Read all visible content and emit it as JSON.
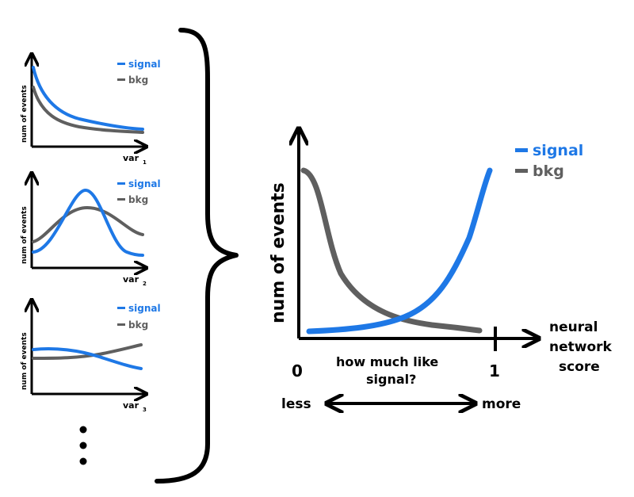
{
  "colors": {
    "signal": "#1E78E6",
    "bkg": "#5F5F5F",
    "ink": "#000000"
  },
  "small_panels": [
    {
      "ylabel": "num of events",
      "xlabel": "var",
      "xlabel_sub": "1",
      "legend": {
        "signal": "signal",
        "bkg": "bkg"
      }
    },
    {
      "ylabel": "num of events",
      "xlabel": "var",
      "xlabel_sub": "2",
      "legend": {
        "signal": "signal",
        "bkg": "bkg"
      }
    },
    {
      "ylabel": "num of events",
      "xlabel": "var",
      "xlabel_sub": "3",
      "legend": {
        "signal": "signal",
        "bkg": "bkg"
      }
    }
  ],
  "main_panel": {
    "ylabel": "num of events",
    "xlabel_line1": "neural",
    "xlabel_line2": "network",
    "xlabel_line3": "score",
    "tick_0": "0",
    "tick_1": "1",
    "question_line1": "how much like",
    "question_line2": "signal?",
    "less_label": "less",
    "more_label": "more",
    "legend": {
      "signal": "signal",
      "bkg": "bkg"
    }
  },
  "ellipsis": "•\n•\n•"
}
